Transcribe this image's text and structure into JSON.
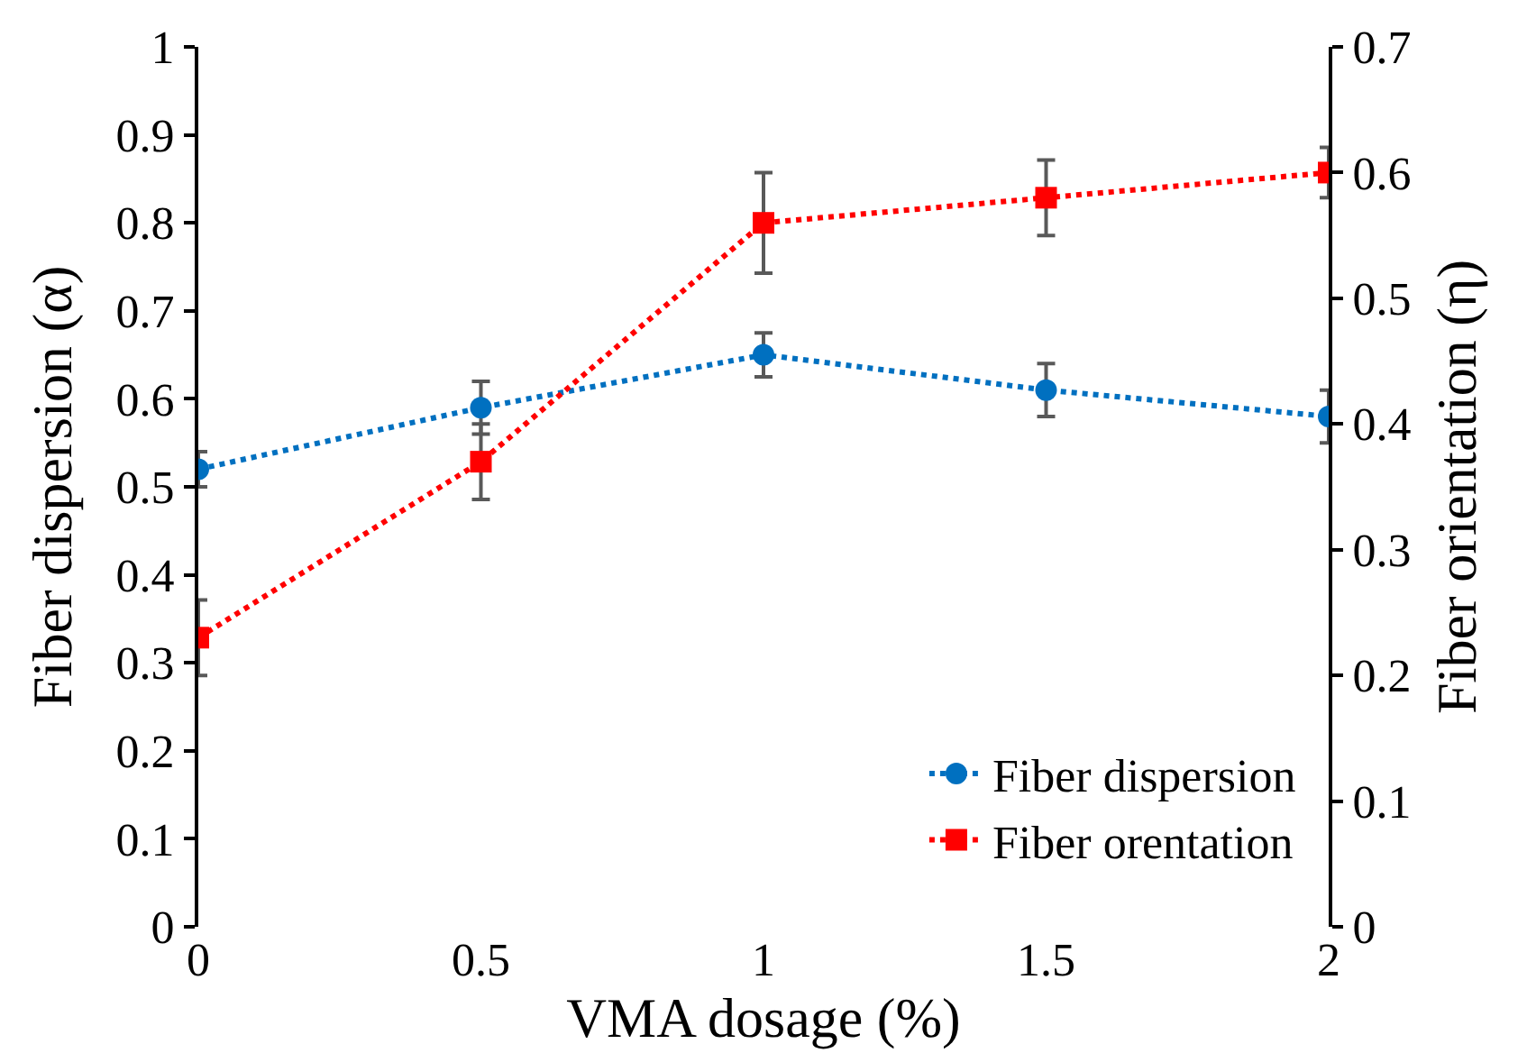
{
  "chart_data": {
    "type": "line",
    "xlabel": "VMA dosage (%)",
    "ylabel": "Fiber dispersion (α)",
    "y2label": "Fiber orientation (η)",
    "x": [
      0,
      0.5,
      1,
      1.5,
      2
    ],
    "series": [
      {
        "name": "Fiber dispersion",
        "color": "#0070c0",
        "values": [
          0.52,
          0.59,
          0.65,
          0.61,
          0.58
        ],
        "errors": [
          0.02,
          0.03,
          0.025,
          0.03,
          0.03
        ],
        "marker": "circle"
      },
      {
        "name": "Fiber orentation",
        "color": "#ff0000",
        "axis": "y2",
        "values": [
          0.23,
          0.37,
          0.56,
          0.58,
          0.6
        ],
        "errors": [
          0.03,
          0.03,
          0.04,
          0.03,
          0.02
        ],
        "marker": "square"
      }
    ],
    "line_style": "dotted",
    "legend": "bottom right",
    "xlim": [
      0,
      2
    ],
    "xticks": [
      0,
      0.5,
      1,
      1.5,
      2
    ],
    "ylim": [
      0,
      1
    ],
    "yticks": [
      0,
      0.1,
      0.2,
      0.3,
      0.4,
      0.5,
      0.6,
      0.7,
      0.8,
      0.9,
      1
    ],
    "y2lim": [
      0,
      0.7
    ],
    "y2ticks": [
      0,
      0.1,
      0.2,
      0.3,
      0.4,
      0.5,
      0.6,
      0.7
    ]
  }
}
